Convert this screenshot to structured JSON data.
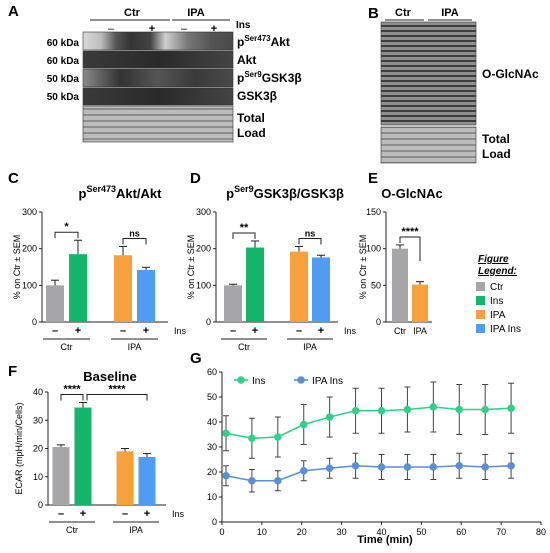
{
  "panels": {
    "A": {
      "letter": "A",
      "groups": [
        "Ctr",
        "IPA"
      ],
      "ins_signs": [
        "–",
        "+",
        "–",
        "+"
      ],
      "ins_label": "Ins",
      "rows": [
        {
          "kda": "60 kDa",
          "label_main": "p",
          "label_sup": "Ser473",
          "label_rest": "Akt"
        },
        {
          "kda": "60 kDa",
          "label_main": "Akt",
          "label_sup": "",
          "label_rest": ""
        },
        {
          "kda": "50 kDa",
          "label_main": "p",
          "label_sup": "Ser9",
          "label_rest": "GSK3β"
        },
        {
          "kda": "50 kDa",
          "label_main": "GSK3β",
          "label_sup": "",
          "label_rest": ""
        }
      ],
      "total_load": [
        "Total",
        "Load"
      ]
    },
    "B": {
      "letter": "B",
      "groups": [
        "Ctr",
        "IPA"
      ],
      "blot_label": "O-GlcNAc",
      "total_load": [
        "Total",
        "Load"
      ]
    },
    "colors": {
      "ctr": "#a6a6a8",
      "ins": "#13b56a",
      "ipa": "#f7a13c",
      "ipa_ins": "#4f9cf2",
      "line_ins": "#2fd08a",
      "line_ipa": "#5a8fd6"
    }
  },
  "chart_data": [
    {
      "id": "C",
      "type": "bar",
      "title": "pSer473Akt/Akt",
      "title_main": "p",
      "title_sup": "Ser473",
      "title_rest": "Akt/Akt",
      "ylabel": "% on Ctr ± SEM",
      "ylim": [
        0,
        300
      ],
      "yticks": [
        "0",
        "100",
        "200",
        "300"
      ],
      "categories": [
        "Ctr",
        "Ins",
        "IPA",
        "IPA Ins"
      ],
      "values": [
        100,
        185,
        182,
        142
      ],
      "errors": [
        14,
        38,
        24,
        7
      ],
      "signs": [
        "–",
        "+",
        "–",
        "+"
      ],
      "ins_label": "Ins",
      "groups": [
        "Ctr",
        "IPA"
      ],
      "sig": [
        "*",
        "ns"
      ]
    },
    {
      "id": "D",
      "type": "bar",
      "title": "pSer9GSK3β/GSK3β",
      "title_main": "p",
      "title_sup": "Ser9",
      "title_rest": "GSK3β/GSK3β",
      "ylabel": "% on Ctr ± SEM",
      "ylim": [
        0,
        300
      ],
      "yticks": [
        "0",
        "100",
        "200",
        "300"
      ],
      "categories": [
        "Ctr",
        "Ins",
        "IPA",
        "IPA Ins"
      ],
      "values": [
        100,
        203,
        192,
        176
      ],
      "errors": [
        3,
        18,
        14,
        6
      ],
      "signs": [
        "–",
        "+",
        "–",
        "+"
      ],
      "ins_label": "Ins",
      "groups": [
        "Ctr",
        "IPA"
      ],
      "sig": [
        "**",
        "ns"
      ]
    },
    {
      "id": "E",
      "type": "bar",
      "title": "O-GlcNAc",
      "ylabel": "% on Ctr ± SEM",
      "ylim": [
        0,
        150
      ],
      "yticks": [
        "0",
        "50",
        "100",
        "150"
      ],
      "categories": [
        "Ctr",
        "IPA"
      ],
      "values": [
        100,
        51
      ],
      "errors": [
        5,
        4
      ],
      "sig": [
        "****"
      ],
      "legend": {
        "title": [
          "Figure",
          "Legend:"
        ],
        "entries": [
          "Ctr",
          "Ins",
          "IPA",
          "IPA Ins"
        ]
      }
    },
    {
      "id": "F",
      "type": "bar",
      "title": "Baseline",
      "ylabel": "ECAR (mpH/min/Cells)",
      "ylim": [
        0,
        40
      ],
      "yticks": [
        "0",
        "10",
        "20",
        "30",
        "40"
      ],
      "categories": [
        "Ctr",
        "Ins",
        "IPA",
        "IPA Ins"
      ],
      "values": [
        20.5,
        34.5,
        19,
        17
      ],
      "errors": [
        0.8,
        1.8,
        1.0,
        1.2
      ],
      "signs": [
        "–",
        "+",
        "–",
        "+"
      ],
      "ins_label": "Ins",
      "groups": [
        "Ctr",
        "IPA"
      ],
      "sig": [
        "****",
        "****"
      ]
    },
    {
      "id": "G",
      "type": "line",
      "xlabel": "Time (min)",
      "xlim": [
        0,
        80
      ],
      "xticks": [
        "0",
        "10",
        "20",
        "30",
        "40",
        "50",
        "60",
        "70",
        "80"
      ],
      "ylim": [
        0,
        60
      ],
      "yticks": [
        "0",
        "10",
        "20",
        "30",
        "40",
        "50",
        "60"
      ],
      "series": [
        {
          "name": "Ins",
          "x": [
            1,
            7.5,
            14,
            20.5,
            27,
            33.5,
            40,
            46.5,
            53,
            59.5,
            66,
            72.5
          ],
          "y": [
            35.5,
            33.5,
            34,
            39,
            42,
            44.5,
            44.5,
            45,
            46,
            45,
            45,
            45.5
          ],
          "err": [
            7,
            8,
            8,
            8,
            8,
            9,
            9,
            9,
            10,
            10,
            10,
            10
          ]
        },
        {
          "name": "IPA Ins",
          "x": [
            1,
            7.5,
            14,
            20.5,
            27,
            33.5,
            40,
            46.5,
            53,
            59.5,
            66,
            72.5
          ],
          "y": [
            18.5,
            16.5,
            16.5,
            20.5,
            21.5,
            22.5,
            22,
            22,
            22,
            22.5,
            22,
            22.5
          ],
          "err": [
            4,
            4.5,
            4,
            4,
            4,
            5,
            5,
            5,
            5,
            5,
            5,
            5
          ]
        }
      ]
    }
  ],
  "letters": {
    "C": "C",
    "D": "D",
    "E": "E",
    "F": "F",
    "G": "G"
  }
}
